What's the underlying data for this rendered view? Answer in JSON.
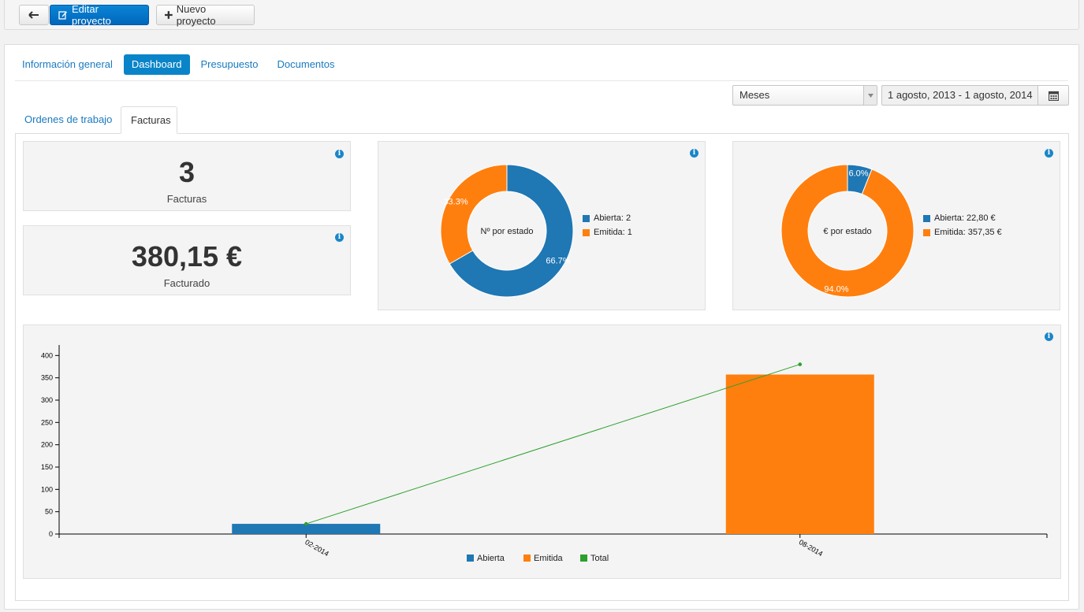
{
  "toolbar": {
    "back_icon": "arrow-left-icon",
    "edit_label": "Editar proyecto",
    "edit_icon": "edit-icon",
    "new_label": "Nuevo proyecto",
    "new_icon": "plus-icon"
  },
  "tabs": [
    {
      "label": "Información general",
      "active": false
    },
    {
      "label": "Dashboard",
      "active": true
    },
    {
      "label": "Presupuesto",
      "active": false
    },
    {
      "label": "Documentos",
      "active": false
    }
  ],
  "filters": {
    "period": "Meses",
    "date_range": "1 agosto, 2013 - 1 agosto, 2014",
    "calendar_icon": "calendar-icon"
  },
  "subtabs": [
    {
      "label": "Ordenes de trabajo",
      "active": false
    },
    {
      "label": "Facturas",
      "active": true
    }
  ],
  "kpis": {
    "count": {
      "value": "3",
      "label": "Facturas"
    },
    "amount": {
      "value": "380,15 €",
      "label": "Facturado"
    }
  },
  "colors": {
    "blue": "#1f77b4",
    "orange": "#ff7f0e",
    "green": "#2ca02c",
    "accent": "#0a84c9"
  },
  "chart_data": [
    {
      "type": "pie",
      "title": "Nº por estado",
      "labels": [
        "Abierta",
        "Emitida"
      ],
      "values": [
        2,
        1
      ],
      "legend": [
        "Abierta: 2",
        "Emitida: 1"
      ],
      "percent_labels": [
        "66.7%",
        "33.3%"
      ]
    },
    {
      "type": "pie",
      "title": "€ por estado",
      "labels": [
        "Abierta",
        "Emitida"
      ],
      "values": [
        22.8,
        357.35
      ],
      "legend": [
        "Abierta: 22,80 €",
        "Emitida: 357,35 €"
      ],
      "percent_labels": [
        "6.0%",
        "94.0%"
      ]
    },
    {
      "type": "bar",
      "categories": [
        "02-2014",
        "08-2014"
      ],
      "series": [
        {
          "name": "Abierta",
          "kind": "bar",
          "values": [
            22.8,
            0
          ]
        },
        {
          "name": "Emitida",
          "kind": "bar",
          "values": [
            0,
            357.35
          ]
        },
        {
          "name": "Total",
          "kind": "line",
          "values": [
            22.8,
            380.15
          ]
        }
      ],
      "yticks": [
        0,
        50,
        100,
        150,
        200,
        250,
        300,
        350,
        400
      ],
      "ylim": [
        0,
        420
      ],
      "legend_position": "bottom"
    }
  ]
}
